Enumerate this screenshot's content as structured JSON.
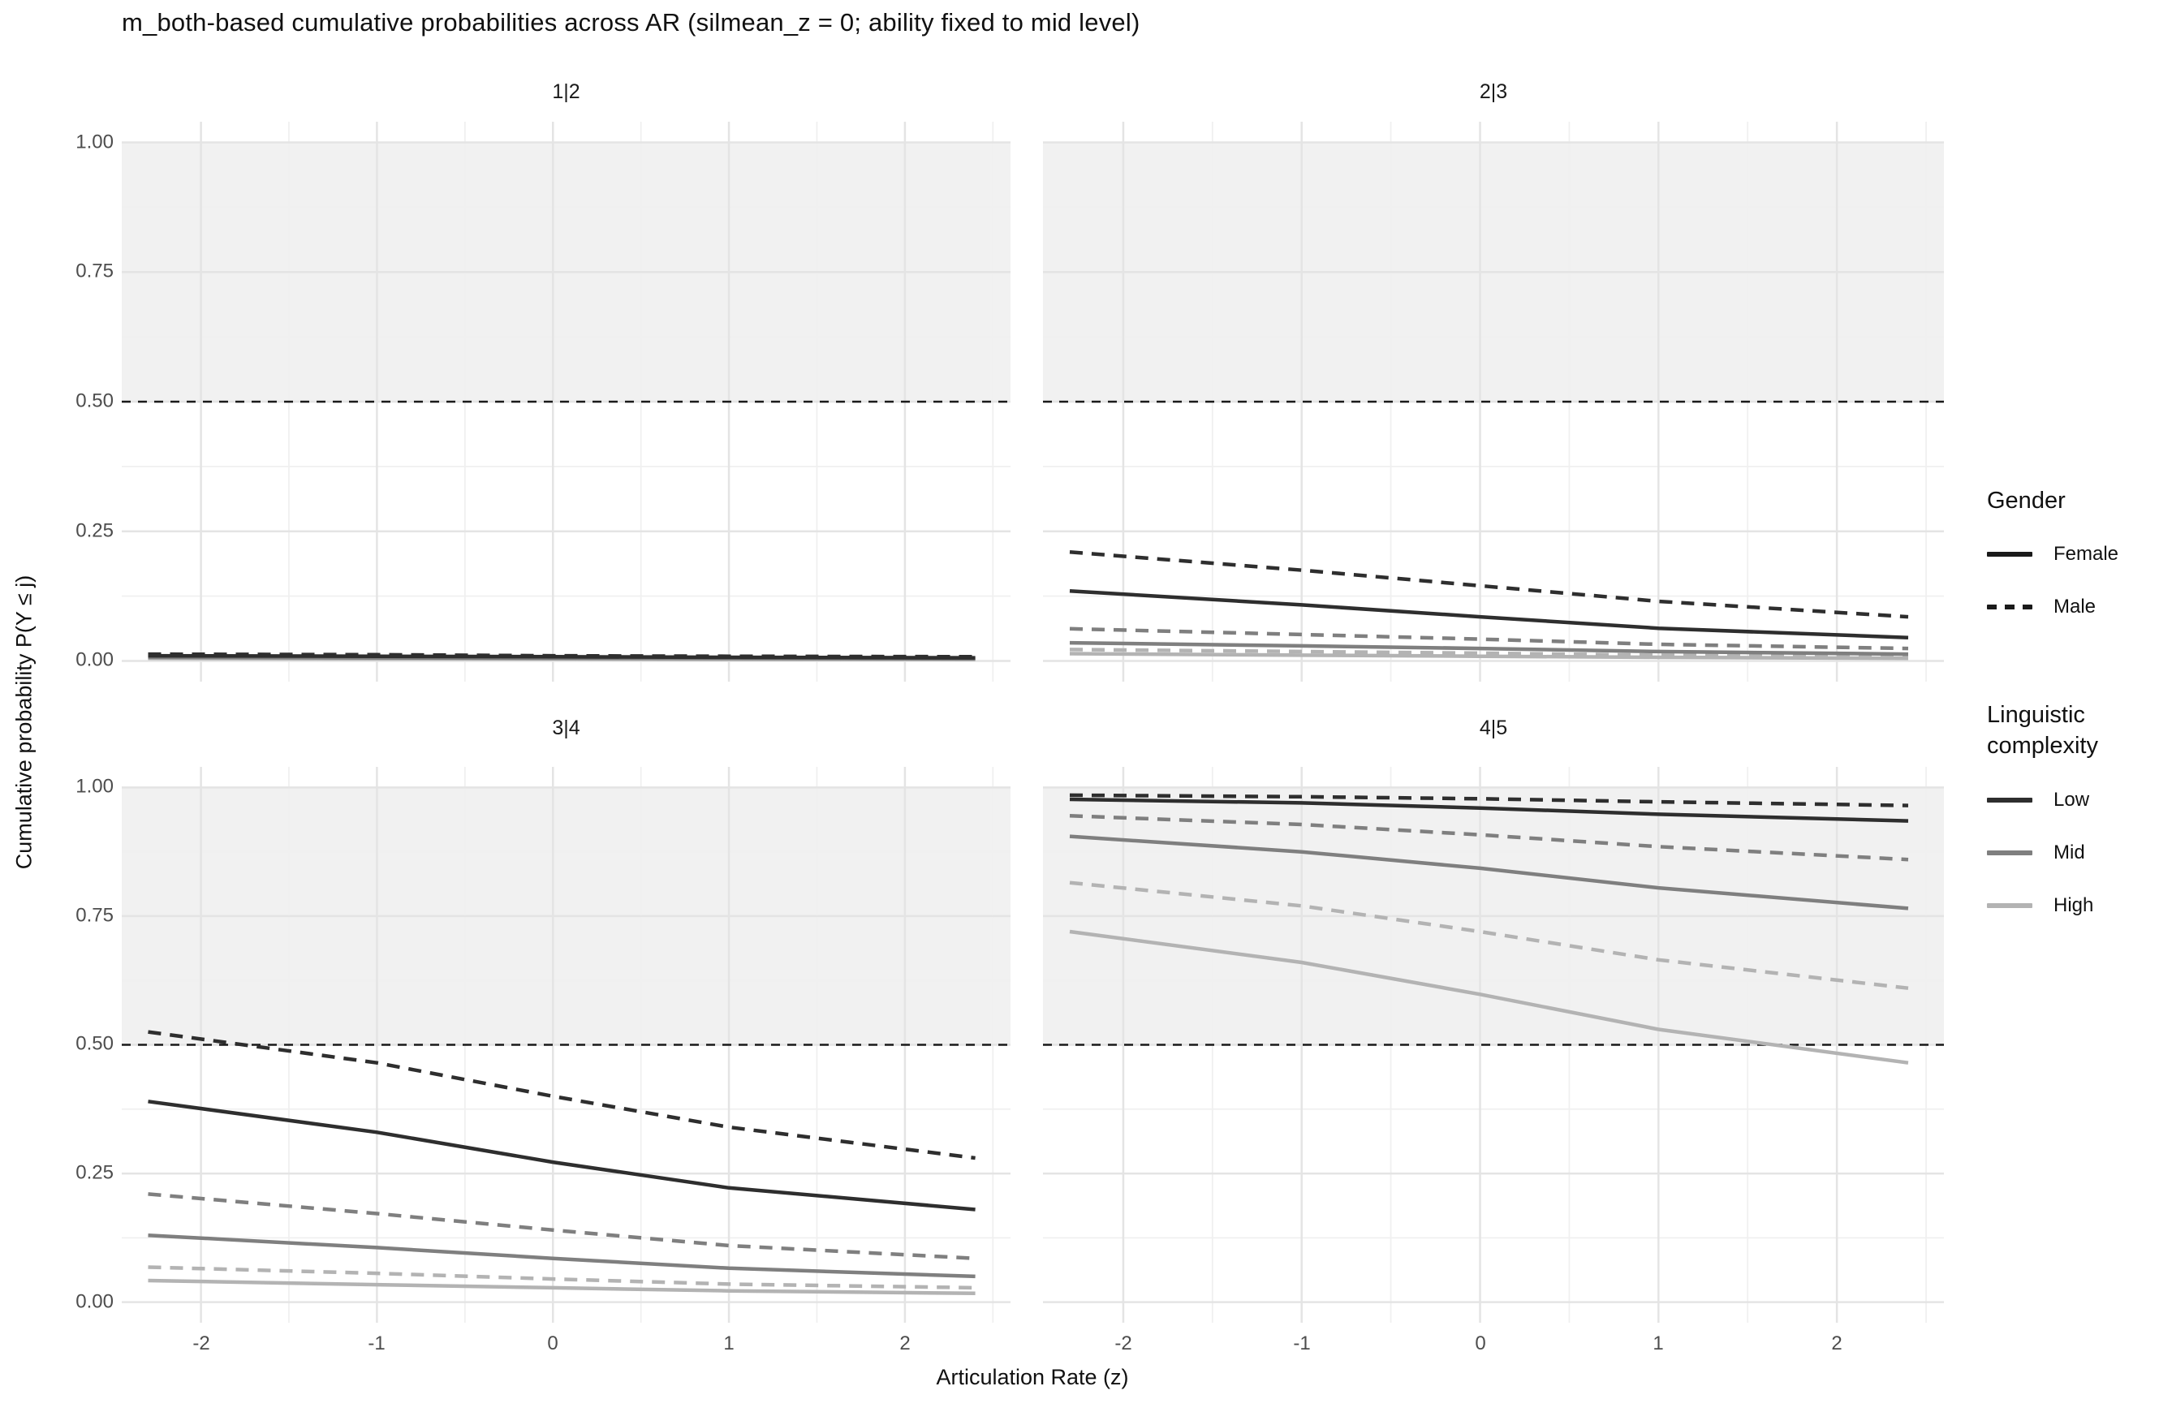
{
  "title": "m_both-based cumulative probabilities across AR (silmean_z = 0; ability fixed to mid level)",
  "axes": {
    "x_title": "Articulation Rate (z)",
    "y_title": "Cumulative probability P(Y ≤ j)",
    "x_ticks": [
      "-2",
      "-1",
      "0",
      "1",
      "2"
    ],
    "y_ticks": [
      "1.00",
      "0.75",
      "0.50",
      "0.25",
      "0.00"
    ]
  },
  "legend": {
    "gender": {
      "title": "Gender",
      "items": [
        {
          "label": "Female",
          "style": "solid"
        },
        {
          "label": "Male",
          "style": "dashed"
        }
      ],
      "swatch_color": "#1a1a1a"
    },
    "complexity": {
      "title": "Linguistic complexity",
      "title_lines": [
        "Linguistic",
        "complexity"
      ],
      "items": [
        {
          "label": "Low",
          "color": "#2e2e2e"
        },
        {
          "label": "Mid",
          "color": "#7f7f7f"
        },
        {
          "label": "High",
          "color": "#b3b3b3"
        }
      ]
    }
  },
  "colors": {
    "low": "#2e2e2e",
    "mid": "#7f7f7f",
    "high": "#b3b3b3",
    "reference_line": "#1a1a1a",
    "band": "rgba(0,0,0,0.055)",
    "grid_major": "#e4e4e4",
    "grid_minor": "#f0f0f0"
  },
  "chart_data": {
    "type": "line",
    "x_label": "Articulation Rate (z)",
    "y_label": "Cumulative probability P(Y ≤ j)",
    "x": [
      -2.3,
      -1,
      0,
      1,
      2.4
    ],
    "x_domain": [
      -2.45,
      2.6
    ],
    "y_domain": [
      -0.04,
      1.04
    ],
    "x_major": [
      -2,
      -1,
      0,
      1,
      2
    ],
    "x_minor": [
      -1.5,
      -0.5,
      0.5,
      1.5,
      2.5
    ],
    "y_major": [
      0,
      0.25,
      0.5,
      0.75,
      1.0
    ],
    "y_minor": [
      0.125,
      0.375,
      0.625,
      0.875
    ],
    "reference_line_y": 0.5,
    "shaded_band": [
      0.5,
      1.0
    ],
    "facets": [
      {
        "label": "1|2",
        "series": [
          {
            "gender": "Female",
            "complexity": "High",
            "y": [
              0.005,
              0.004,
              0.004,
              0.003,
              0.003
            ]
          },
          {
            "gender": "Male",
            "complexity": "High",
            "y": [
              0.006,
              0.005,
              0.005,
              0.004,
              0.004
            ]
          },
          {
            "gender": "Female",
            "complexity": "Mid",
            "y": [
              0.007,
              0.006,
              0.005,
              0.005,
              0.004
            ]
          },
          {
            "gender": "Male",
            "complexity": "Mid",
            "y": [
              0.008,
              0.007,
              0.006,
              0.006,
              0.005
            ]
          },
          {
            "gender": "Female",
            "complexity": "Low",
            "y": [
              0.01,
              0.009,
              0.008,
              0.007,
              0.006
            ]
          },
          {
            "gender": "Male",
            "complexity": "Low",
            "y": [
              0.013,
              0.012,
              0.01,
              0.009,
              0.008
            ]
          }
        ]
      },
      {
        "label": "2|3",
        "series": [
          {
            "gender": "Female",
            "complexity": "High",
            "y": [
              0.014,
              0.011,
              0.009,
              0.007,
              0.005
            ]
          },
          {
            "gender": "Male",
            "complexity": "High",
            "y": [
              0.022,
              0.018,
              0.015,
              0.011,
              0.008
            ]
          },
          {
            "gender": "Female",
            "complexity": "Mid",
            "y": [
              0.035,
              0.029,
              0.024,
              0.018,
              0.013
            ]
          },
          {
            "gender": "Male",
            "complexity": "Mid",
            "y": [
              0.062,
              0.051,
              0.042,
              0.032,
              0.024
            ]
          },
          {
            "gender": "Female",
            "complexity": "Low",
            "y": [
              0.135,
              0.108,
              0.085,
              0.063,
              0.045
            ]
          },
          {
            "gender": "Male",
            "complexity": "Low",
            "y": [
              0.21,
              0.175,
              0.145,
              0.115,
              0.085
            ]
          }
        ]
      },
      {
        "label": "3|4",
        "series": [
          {
            "gender": "Female",
            "complexity": "High",
            "y": [
              0.042,
              0.034,
              0.028,
              0.022,
              0.017
            ]
          },
          {
            "gender": "Male",
            "complexity": "High",
            "y": [
              0.068,
              0.056,
              0.045,
              0.035,
              0.028
            ]
          },
          {
            "gender": "Female",
            "complexity": "Mid",
            "y": [
              0.13,
              0.106,
              0.085,
              0.066,
              0.05
            ]
          },
          {
            "gender": "Male",
            "complexity": "Mid",
            "y": [
              0.21,
              0.172,
              0.14,
              0.11,
              0.085
            ]
          },
          {
            "gender": "Female",
            "complexity": "Low",
            "y": [
              0.39,
              0.33,
              0.272,
              0.222,
              0.18
            ]
          },
          {
            "gender": "Male",
            "complexity": "Low",
            "y": [
              0.525,
              0.465,
              0.4,
              0.34,
              0.28
            ]
          }
        ]
      },
      {
        "label": "4|5",
        "series": [
          {
            "gender": "Female",
            "complexity": "High",
            "y": [
              0.72,
              0.66,
              0.598,
              0.53,
              0.465
            ]
          },
          {
            "gender": "Male",
            "complexity": "High",
            "y": [
              0.815,
              0.77,
              0.72,
              0.665,
              0.61
            ]
          },
          {
            "gender": "Female",
            "complexity": "Mid",
            "y": [
              0.905,
              0.875,
              0.843,
              0.805,
              0.765
            ]
          },
          {
            "gender": "Male",
            "complexity": "Mid",
            "y": [
              0.945,
              0.928,
              0.908,
              0.885,
              0.86
            ]
          },
          {
            "gender": "Female",
            "complexity": "Low",
            "y": [
              0.977,
              0.97,
              0.96,
              0.948,
              0.935
            ]
          },
          {
            "gender": "Male",
            "complexity": "Low",
            "y": [
              0.985,
              0.982,
              0.978,
              0.972,
              0.965
            ]
          }
        ]
      }
    ]
  }
}
